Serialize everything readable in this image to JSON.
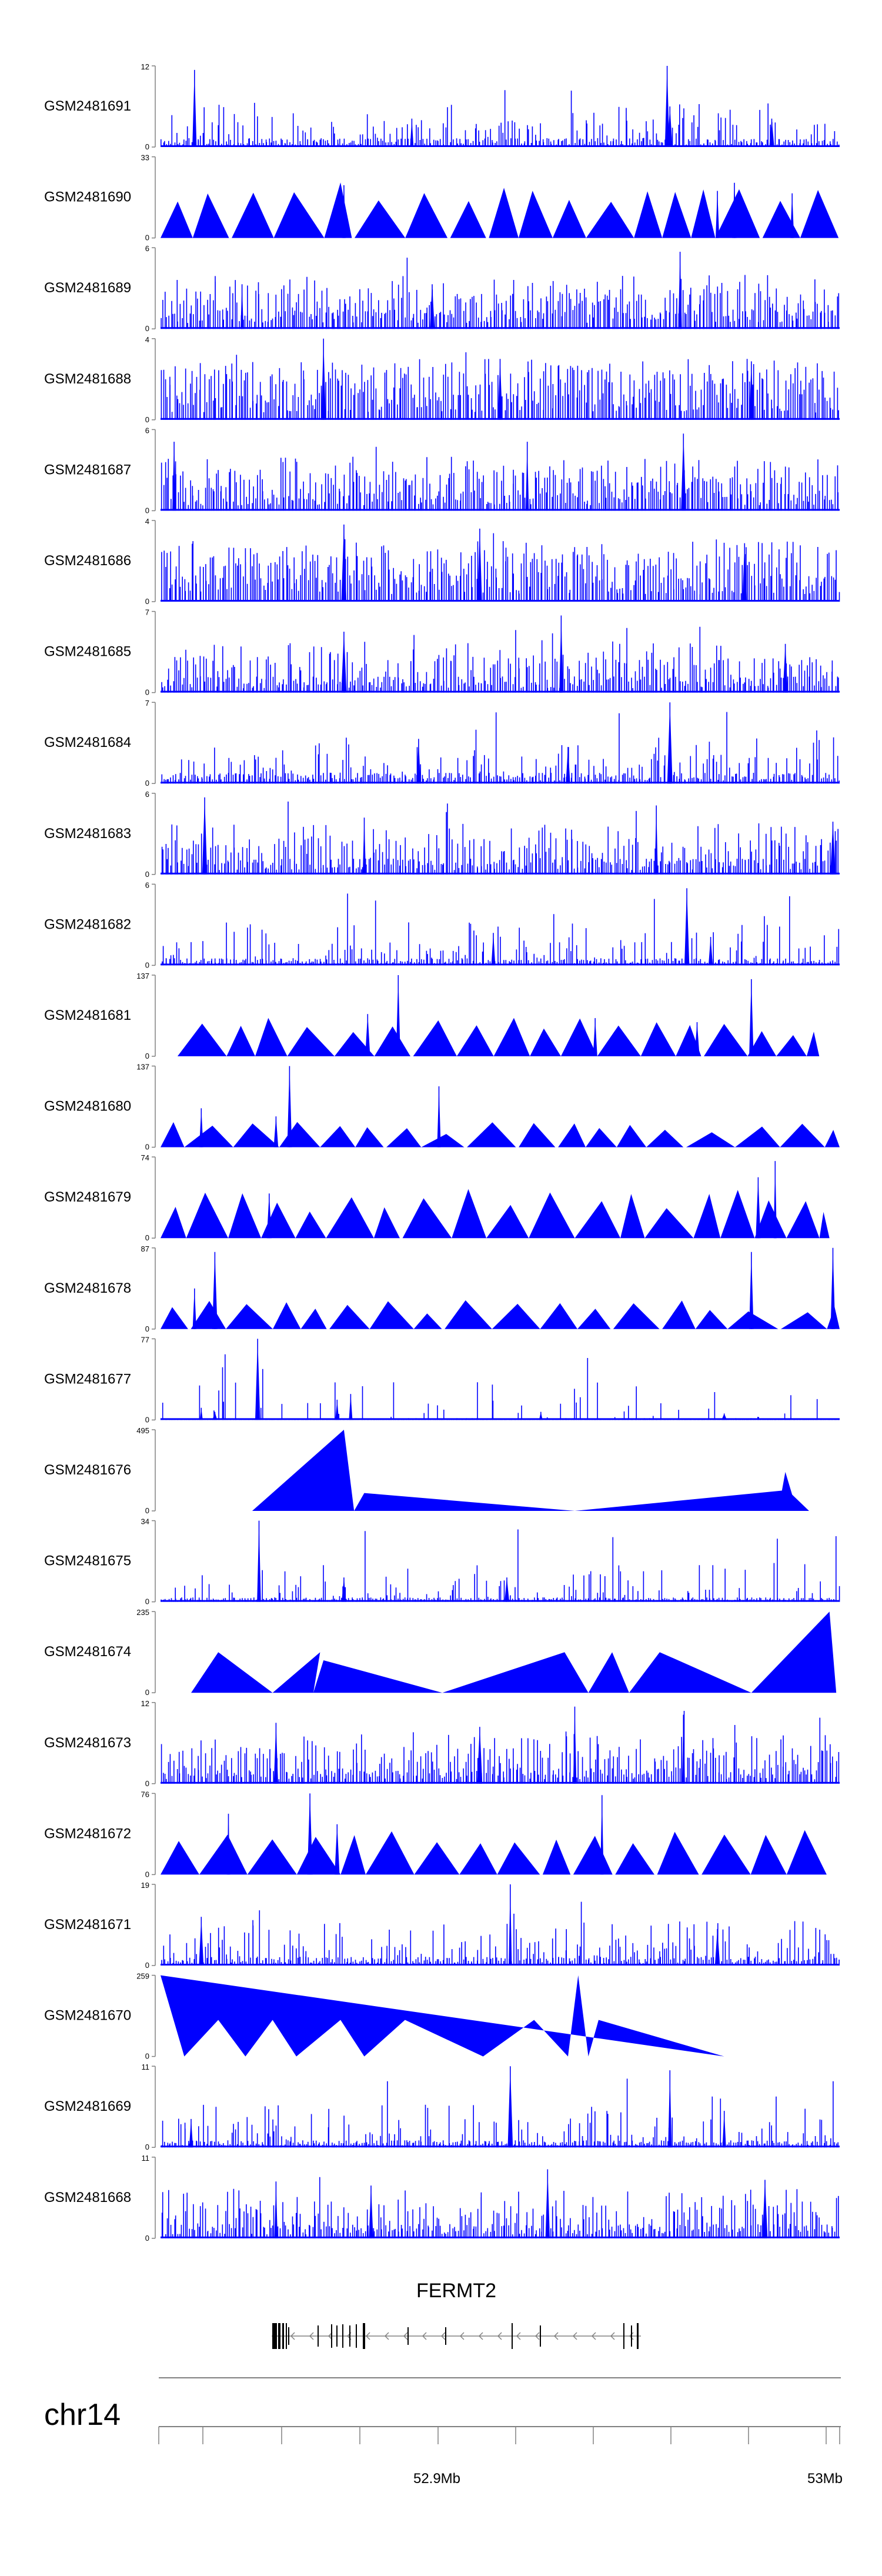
{
  "chart_data": {
    "type": "area",
    "title": "",
    "region": {
      "chromosome": "chr14",
      "axis_tick_labels": [
        "52.9Mb",
        "53Mb"
      ]
    },
    "gene": {
      "name": "FERMT2",
      "strand": "-"
    },
    "colors": {
      "signal": "#0000ff",
      "axis": "#808080",
      "text": "#000000"
    },
    "tracks": [
      {
        "name": "GSM2481691",
        "ymax": 12,
        "ymax_label": "12",
        "ymin_label": "0",
        "style": "spiky",
        "baseline": 0.1,
        "density": 0.55,
        "peaks": [
          [
            0.05,
            0.95
          ],
          [
            0.746,
            1.0
          ],
          [
            0.75,
            0.5
          ],
          [
            0.37,
            0.35
          ],
          [
            0.9,
            0.35
          ]
        ]
      },
      {
        "name": "GSM2481690",
        "ymax": 33,
        "ymax_label": "33",
        "ymin_label": "0",
        "style": "triangles",
        "tri": [
          0.42,
          0.7
        ],
        "peaks": [
          [
            0.27,
            0.65
          ],
          [
            0.82,
            0.58
          ],
          [
            0.845,
            0.68
          ],
          [
            0.93,
            0.55
          ]
        ]
      },
      {
        "name": "GSM2481689",
        "ymax": 6,
        "ymax_label": "6",
        "ymin_label": "0",
        "style": "spiky",
        "baseline": 0.22,
        "density": 0.85,
        "peaks": [
          [
            0.765,
            0.95
          ],
          [
            0.4,
            0.55
          ],
          [
            0.12,
            0.55
          ]
        ]
      },
      {
        "name": "GSM2481688",
        "ymax": 4,
        "ymax_label": "4",
        "ymin_label": "0",
        "style": "spiky",
        "baseline": 0.3,
        "density": 0.9,
        "peaks": [
          [
            0.24,
            1.0
          ],
          [
            0.5,
            0.75
          ],
          [
            0.87,
            0.72
          ]
        ]
      },
      {
        "name": "GSM2481687",
        "ymax": 6,
        "ymax_label": "6",
        "ymin_label": "0",
        "style": "spiky",
        "baseline": 0.22,
        "density": 0.85,
        "peaks": [
          [
            0.77,
            0.95
          ],
          [
            0.54,
            0.85
          ],
          [
            0.02,
            0.85
          ]
        ]
      },
      {
        "name": "GSM2481686",
        "ymax": 4,
        "ymax_label": "4",
        "ymin_label": "0",
        "style": "spiky",
        "baseline": 0.3,
        "density": 0.9,
        "peaks": [
          [
            0.27,
            0.95
          ],
          [
            0.47,
            0.9
          ],
          [
            0.86,
            0.72
          ]
        ]
      },
      {
        "name": "GSM2481685",
        "ymax": 7,
        "ymax_label": "7",
        "ymin_label": "0",
        "style": "spiky",
        "baseline": 0.18,
        "density": 0.75,
        "peaks": [
          [
            0.59,
            0.95
          ],
          [
            0.27,
            0.75
          ],
          [
            0.92,
            0.6
          ]
        ]
      },
      {
        "name": "GSM2481684",
        "ymax": 7,
        "ymax_label": "7",
        "ymin_label": "0",
        "style": "spiky",
        "baseline": 0.12,
        "density": 0.55,
        "peaks": [
          [
            0.75,
            1.0
          ],
          [
            0.38,
            0.55
          ],
          [
            0.6,
            0.45
          ]
        ]
      },
      {
        "name": "GSM2481683",
        "ymax": 6,
        "ymax_label": "6",
        "ymin_label": "0",
        "style": "spiky",
        "baseline": 0.18,
        "density": 0.75,
        "peaks": [
          [
            0.065,
            0.95
          ],
          [
            0.73,
            0.85
          ],
          [
            0.3,
            0.7
          ],
          [
            0.99,
            0.65
          ]
        ]
      },
      {
        "name": "GSM2481682",
        "ymax": 6,
        "ymax_label": "6",
        "ymin_label": "0",
        "style": "spiky",
        "baseline": 0.08,
        "density": 0.45,
        "peaks": [
          [
            0.775,
            0.95
          ],
          [
            0.81,
            0.35
          ],
          [
            0.49,
            0.4
          ]
        ]
      },
      {
        "name": "GSM2481681",
        "ymax": 137,
        "ymax_label": "137",
        "ymin_label": "0",
        "style": "triangles",
        "tri": [
          0.22,
          0.5
        ],
        "start": 0.025,
        "end": 0.97,
        "peaks": [
          [
            0.35,
            1.0
          ],
          [
            0.87,
            0.95
          ],
          [
            0.305,
            0.52
          ],
          [
            0.79,
            0.42
          ],
          [
            0.64,
            0.47
          ]
        ]
      },
      {
        "name": "GSM2481680",
        "ymax": 137,
        "ymax_label": "137",
        "ymin_label": "0",
        "style": "triangles",
        "tri": [
          0.15,
          0.32
        ],
        "peaks": [
          [
            0.19,
            1.0
          ],
          [
            0.41,
            0.75
          ],
          [
            0.06,
            0.48
          ],
          [
            0.17,
            0.38
          ]
        ]
      },
      {
        "name": "GSM2481679",
        "ymax": 74,
        "ymax_label": "74",
        "ymin_label": "0",
        "style": "triangles",
        "tri": [
          0.32,
          0.62
        ],
        "start": 0.0,
        "end": 0.985,
        "peaks": [
          [
            0.905,
            0.95
          ],
          [
            0.88,
            0.75
          ],
          [
            0.16,
            0.55
          ]
        ]
      },
      {
        "name": "GSM2481678",
        "ymax": 87,
        "ymax_label": "87",
        "ymin_label": "0",
        "style": "triangles",
        "tri": [
          0.18,
          0.36
        ],
        "peaks": [
          [
            0.08,
            0.95
          ],
          [
            0.99,
            1.0
          ],
          [
            0.87,
            0.95
          ],
          [
            0.05,
            0.5
          ]
        ]
      },
      {
        "name": "GSM2481677",
        "ymax": 77,
        "ymax_label": "77",
        "ymin_label": "0",
        "style": "spiky",
        "baseline": 0.02,
        "density": 0.2,
        "peaks": [
          [
            0.143,
            1.0
          ],
          [
            0.28,
            0.32
          ],
          [
            0.26,
            0.25
          ],
          [
            0.06,
            0.15
          ],
          [
            0.08,
            0.1
          ],
          [
            0.56,
            0.1
          ],
          [
            0.83,
            0.08
          ]
        ]
      },
      {
        "name": "GSM2481676",
        "ymax": 495,
        "ymax_label": "495",
        "ymin_label": "0",
        "style": "polygon",
        "points": [
          [
            0.135,
            0.0
          ],
          [
            0.27,
            1.0
          ],
          [
            0.285,
            0.0
          ],
          [
            0.3,
            0.22
          ],
          [
            0.61,
            0.0
          ],
          [
            0.915,
            0.25
          ],
          [
            0.92,
            0.48
          ],
          [
            0.93,
            0.2
          ],
          [
            0.955,
            0.0
          ]
        ]
      },
      {
        "name": "GSM2481675",
        "ymax": 34,
        "ymax_label": "34",
        "ymin_label": "0",
        "style": "spiky",
        "baseline": 0.05,
        "density": 0.4,
        "peaks": [
          [
            0.145,
            1.0
          ],
          [
            0.27,
            0.3
          ],
          [
            0.51,
            0.3
          ]
        ]
      },
      {
        "name": "GSM2481674",
        "ymax": 235,
        "ymax_label": "235",
        "ymin_label": "0",
        "style": "polygon",
        "points": [
          [
            0.045,
            0.0
          ],
          [
            0.085,
            0.5
          ],
          [
            0.165,
            0.0
          ],
          [
            0.235,
            0.5
          ],
          [
            0.225,
            0.0
          ],
          [
            0.24,
            0.4
          ],
          [
            0.415,
            0.0
          ],
          [
            0.595,
            0.5
          ],
          [
            0.63,
            0.0
          ],
          [
            0.665,
            0.5
          ],
          [
            0.69,
            0.0
          ],
          [
            0.735,
            0.5
          ],
          [
            0.87,
            0.0
          ],
          [
            0.985,
            1.0
          ],
          [
            0.995,
            0.0
          ]
        ]
      },
      {
        "name": "GSM2481673",
        "ymax": 12,
        "ymax_label": "12",
        "ymin_label": "0",
        "style": "spiky",
        "baseline": 0.18,
        "density": 0.75,
        "peaks": [
          [
            0.61,
            0.95
          ],
          [
            0.77,
            0.85
          ],
          [
            0.17,
            0.75
          ],
          [
            0.47,
            0.7
          ]
        ]
      },
      {
        "name": "GSM2481672",
        "ymax": 76,
        "ymax_label": "76",
        "ymin_label": "0",
        "style": "triangles",
        "tri": [
          0.38,
          0.55
        ],
        "start": 0.0,
        "end": 0.985,
        "peaks": [
          [
            0.22,
            1.0
          ],
          [
            0.65,
            0.98
          ],
          [
            0.1,
            0.75
          ],
          [
            0.26,
            0.62
          ]
        ]
      },
      {
        "name": "GSM2481671",
        "ymax": 19,
        "ymax_label": "19",
        "ymin_label": "0",
        "style": "spiky",
        "baseline": 0.1,
        "density": 0.6,
        "peaks": [
          [
            0.515,
            1.0
          ],
          [
            0.82,
            0.45
          ],
          [
            0.06,
            0.6
          ]
        ]
      },
      {
        "name": "GSM2481670",
        "ymax": 259,
        "ymax_label": "259",
        "ymin_label": "0",
        "style": "polygon",
        "points": [
          [
            0.0,
            1.0
          ],
          [
            0.035,
            0.0
          ],
          [
            0.085,
            0.45
          ],
          [
            0.125,
            0.0
          ],
          [
            0.165,
            0.45
          ],
          [
            0.2,
            0.0
          ],
          [
            0.265,
            0.45
          ],
          [
            0.3,
            0.0
          ],
          [
            0.36,
            0.45
          ],
          [
            0.475,
            0.0
          ],
          [
            0.55,
            0.45
          ],
          [
            0.6,
            0.0
          ],
          [
            0.615,
            1.0
          ],
          [
            0.63,
            0.0
          ],
          [
            0.645,
            0.45
          ],
          [
            0.83,
            0.0
          ]
        ]
      },
      {
        "name": "GSM2481669",
        "ymax": 11,
        "ymax_label": "11",
        "ymin_label": "0",
        "style": "spiky",
        "baseline": 0.08,
        "density": 0.5,
        "peaks": [
          [
            0.515,
            1.0
          ],
          [
            0.75,
            0.95
          ],
          [
            0.83,
            0.45
          ],
          [
            0.045,
            0.35
          ]
        ]
      },
      {
        "name": "GSM2481668",
        "ymax": 11,
        "ymax_label": "11",
        "ymin_label": "0",
        "style": "spiky",
        "baseline": 0.16,
        "density": 0.7,
        "peaks": [
          [
            0.57,
            0.85
          ],
          [
            0.17,
            0.7
          ],
          [
            0.89,
            0.72
          ],
          [
            0.31,
            0.65
          ]
        ]
      }
    ]
  }
}
